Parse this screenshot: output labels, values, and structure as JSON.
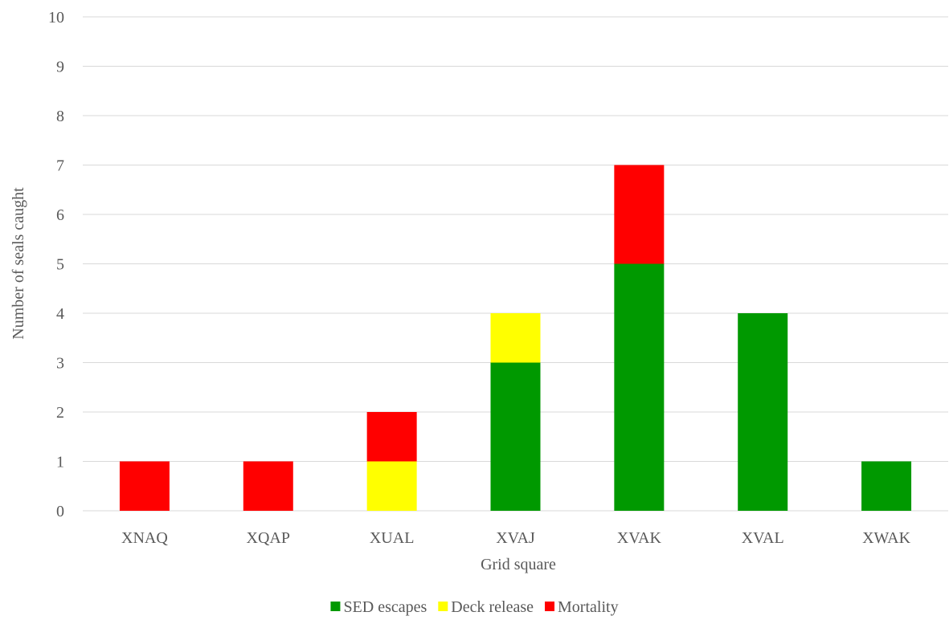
{
  "chart_data": {
    "type": "bar",
    "stacked": true,
    "title": "",
    "xlabel": "Grid square",
    "ylabel": "Number of seals caught",
    "ylim": [
      0,
      10
    ],
    "yticks": [
      0,
      1,
      2,
      3,
      4,
      5,
      6,
      7,
      8,
      9,
      10
    ],
    "grid": true,
    "legend_position": "bottom",
    "categories": [
      "XNAQ",
      "XQAP",
      "XUAL",
      "XVAJ",
      "XVAK",
      "XVAL",
      "XWAK"
    ],
    "series": [
      {
        "name": "SED escapes",
        "color": "#009900",
        "values": [
          0,
          0,
          0,
          3,
          5,
          4,
          1
        ]
      },
      {
        "name": "Deck release",
        "color": "#ffff00",
        "values": [
          0,
          0,
          1,
          1,
          0,
          0,
          0
        ]
      },
      {
        "name": "Mortality",
        "color": "#ff0000",
        "values": [
          1,
          1,
          1,
          0,
          2,
          0,
          0
        ]
      }
    ]
  }
}
